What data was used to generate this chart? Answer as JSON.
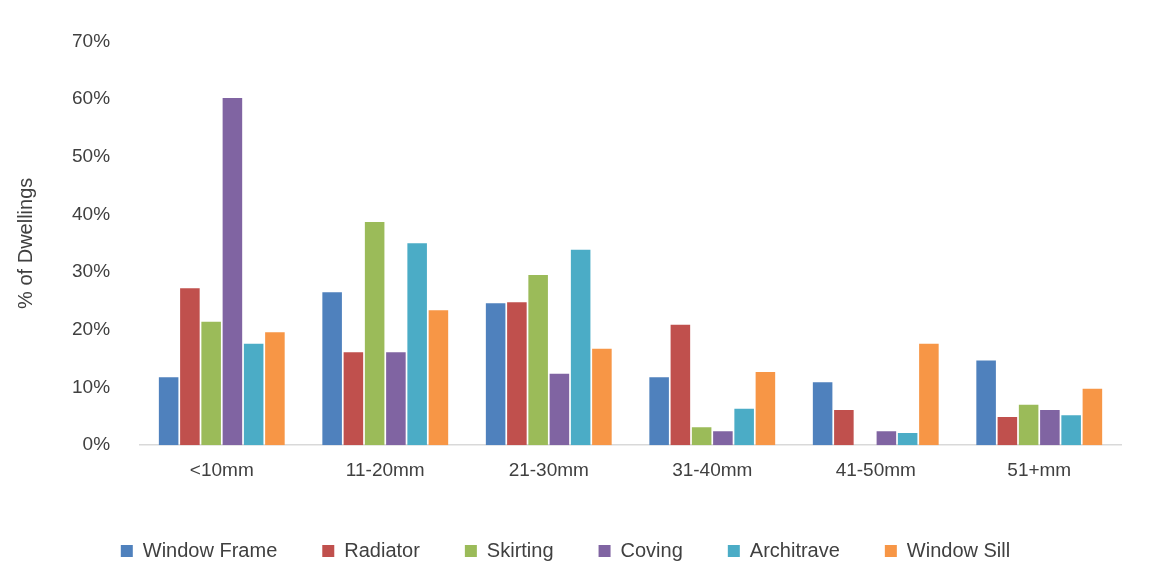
{
  "chart_data": {
    "type": "bar",
    "ylabel": "% of Dwellings",
    "categories": [
      "<10mm",
      "11-20mm",
      "21-30mm",
      "31-40mm",
      "41-50mm",
      "51+mm"
    ],
    "series": [
      {
        "name": "Window Frame",
        "color": "#4f81bd",
        "values": [
          11.8,
          26.5,
          24.6,
          11.8,
          10.9,
          14.7
        ]
      },
      {
        "name": "Radiator",
        "color": "#c0504d",
        "values": [
          27.2,
          16.1,
          24.8,
          20.9,
          6.1,
          4.9
        ]
      },
      {
        "name": "Skirting",
        "color": "#9bbb59",
        "values": [
          21.4,
          38.7,
          29.5,
          3.1,
          0,
          7.0
        ]
      },
      {
        "name": "Coving",
        "color": "#8064a2",
        "values": [
          60.2,
          16.1,
          12.4,
          2.4,
          2.4,
          6.1
        ]
      },
      {
        "name": "Architrave",
        "color": "#4bacc6",
        "values": [
          17.6,
          35.0,
          33.9,
          6.3,
          2.1,
          5.2
        ]
      },
      {
        "name": "Window Sill",
        "color": "#f79646",
        "values": [
          19.6,
          23.4,
          16.7,
          12.7,
          17.6,
          9.8
        ]
      }
    ],
    "ylim": [
      0,
      70
    ],
    "yticks": [
      {
        "value": 0,
        "label": "0%"
      },
      {
        "value": 10,
        "label": "10%"
      },
      {
        "value": 20,
        "label": "20%"
      },
      {
        "value": 30,
        "label": "30%"
      },
      {
        "value": 40,
        "label": "40%"
      },
      {
        "value": 50,
        "label": "50%"
      },
      {
        "value": 60,
        "label": "60%"
      },
      {
        "value": 70,
        "label": "70%"
      }
    ],
    "legend": "bottom"
  }
}
